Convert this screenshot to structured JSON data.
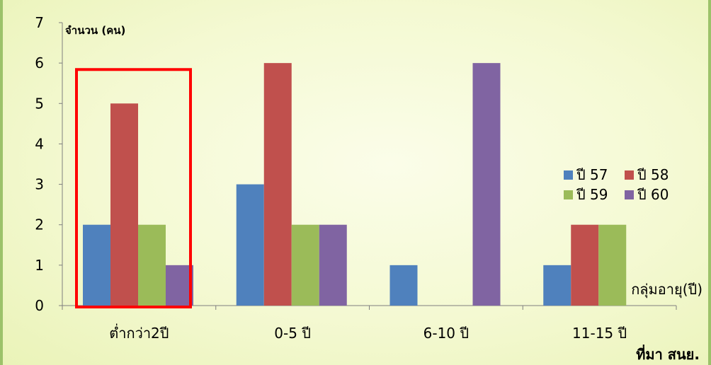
{
  "chart_data": {
    "type": "bar",
    "ylabel": "จำนวน (คน)",
    "xlabel": "กลุ่มอายุ(ปี)",
    "source": "ที่มา สนย.",
    "categories": [
      "ต่ำกว่า2ปี",
      "0-5 ปี",
      "6-10 ปี",
      "11-15 ปี"
    ],
    "series": [
      {
        "name": "ปี 57",
        "color": "#4f81bd",
        "values": [
          2,
          3,
          1,
          1
        ]
      },
      {
        "name": "ปี 58",
        "color": "#c0504d",
        "values": [
          5,
          6,
          0,
          2
        ]
      },
      {
        "name": "ปี 59",
        "color": "#9bbb59",
        "values": [
          2,
          2,
          0,
          2
        ]
      },
      {
        "name": "ปี 60",
        "color": "#8064a2",
        "values": [
          1,
          2,
          6,
          0
        ]
      }
    ],
    "ylim": [
      0,
      7
    ],
    "yticks": [
      0,
      1,
      2,
      3,
      4,
      5,
      6,
      7
    ],
    "grid": false,
    "legend": "right",
    "highlight": {
      "category": "ต่ำกว่า2ปี",
      "color": "#ff0000"
    }
  }
}
